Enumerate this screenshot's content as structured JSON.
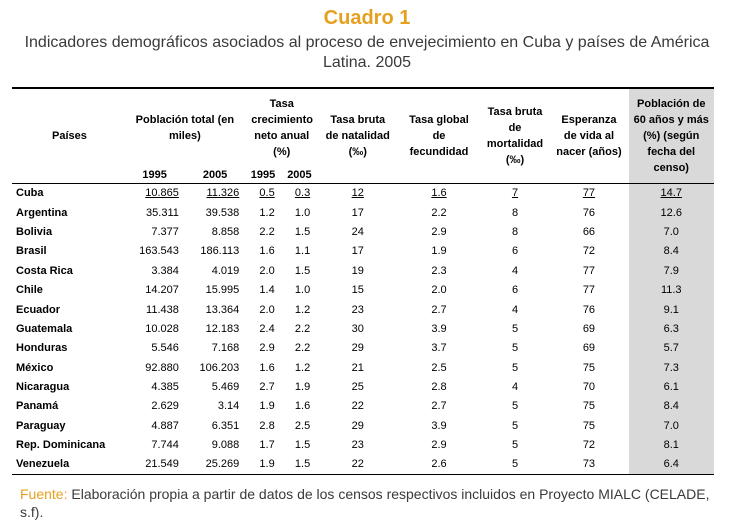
{
  "title": "Cuadro 1",
  "subtitle": "Indicadores demográficos asociados al proceso de envejecimiento en Cuba y países de América Latina. 2005",
  "headers": {
    "paises": "Países",
    "poblacion": "Población total (en miles)",
    "tasa_crec": "Tasa crecimiento neto anual (%)",
    "natalidad": "Tasa bruta de natalidad (‰)",
    "fecundidad": "Tasa global de fecundidad",
    "mortalidad": "Tasa bruta de mortalidad (‰)",
    "esperanza": "Esperanza de vida al nacer (años)",
    "pob60": "Población de 60 años y más (%) (según fecha del censo)",
    "y1995": "1995",
    "y2005": "2005"
  },
  "rows": [
    {
      "country": "Cuba",
      "pop1995": "10.865",
      "pop2005": "11.326",
      "g1995": "0.5",
      "g2005": "0.3",
      "nat": "12",
      "fec": "1.6",
      "mort": "7",
      "esp": "77",
      "p60": "14.7"
    },
    {
      "country": "Argentina",
      "pop1995": "35.311",
      "pop2005": "39.538",
      "g1995": "1.2",
      "g2005": "1.0",
      "nat": "17",
      "fec": "2.2",
      "mort": "8",
      "esp": "76",
      "p60": "12.6"
    },
    {
      "country": "Bolivia",
      "pop1995": "7.377",
      "pop2005": "8.858",
      "g1995": "2.2",
      "g2005": "1.5",
      "nat": "24",
      "fec": "2.9",
      "mort": "8",
      "esp": "66",
      "p60": "7.0"
    },
    {
      "country": "Brasil",
      "pop1995": "163.543",
      "pop2005": "186.113",
      "g1995": "1.6",
      "g2005": "1.1",
      "nat": "17",
      "fec": "1.9",
      "mort": "6",
      "esp": "72",
      "p60": "8.4"
    },
    {
      "country": "Costa Rica",
      "pop1995": "3.384",
      "pop2005": "4.019",
      "g1995": "2.0",
      "g2005": "1.5",
      "nat": "19",
      "fec": "2.3",
      "mort": "4",
      "esp": "77",
      "p60": "7.9"
    },
    {
      "country": "Chile",
      "pop1995": "14.207",
      "pop2005": "15.995",
      "g1995": "1.4",
      "g2005": "1.0",
      "nat": "15",
      "fec": "2.0",
      "mort": "6",
      "esp": "77",
      "p60": "11.3"
    },
    {
      "country": "Ecuador",
      "pop1995": "11.438",
      "pop2005": "13.364",
      "g1995": "2.0",
      "g2005": "1.2",
      "nat": "23",
      "fec": "2.7",
      "mort": "4",
      "esp": "76",
      "p60": "9.1"
    },
    {
      "country": "Guatemala",
      "pop1995": "10.028",
      "pop2005": "12.183",
      "g1995": "2.4",
      "g2005": "2.2",
      "nat": "30",
      "fec": "3.9",
      "mort": "5",
      "esp": "69",
      "p60": "6.3"
    },
    {
      "country": "Honduras",
      "pop1995": "5.546",
      "pop2005": "7.168",
      "g1995": "2.9",
      "g2005": "2.2",
      "nat": "29",
      "fec": "3.7",
      "mort": "5",
      "esp": "69",
      "p60": "5.7"
    },
    {
      "country": "México",
      "pop1995": "92.880",
      "pop2005": "106.203",
      "g1995": "1.6",
      "g2005": "1.2",
      "nat": "21",
      "fec": "2.5",
      "mort": "5",
      "esp": "75",
      "p60": "7.3"
    },
    {
      "country": "Nicaragua",
      "pop1995": "4.385",
      "pop2005": "5.469",
      "g1995": "2.7",
      "g2005": "1.9",
      "nat": "25",
      "fec": "2.8",
      "mort": "4",
      "esp": "70",
      "p60": "6.1"
    },
    {
      "country": "Panamá",
      "pop1995": "2.629",
      "pop2005": "3.14",
      "g1995": "1.9",
      "g2005": "1.6",
      "nat": "22",
      "fec": "2.7",
      "mort": "5",
      "esp": "75",
      "p60": "8.4"
    },
    {
      "country": "Paraguay",
      "pop1995": "4.887",
      "pop2005": "6.351",
      "g1995": "2.8",
      "g2005": "2.5",
      "nat": "29",
      "fec": "3.9",
      "mort": "5",
      "esp": "75",
      "p60": "7.0"
    },
    {
      "country": "Rep. Dominicana",
      "pop1995": "7.744",
      "pop2005": "9.088",
      "g1995": "1.7",
      "g2005": "1.5",
      "nat": "23",
      "fec": "2.9",
      "mort": "5",
      "esp": "72",
      "p60": "8.1"
    },
    {
      "country": "Venezuela",
      "pop1995": "21.549",
      "pop2005": "25.269",
      "g1995": "1.9",
      "g2005": "1.5",
      "nat": "22",
      "fec": "2.6",
      "mort": "5",
      "esp": "73",
      "p60": "6.4"
    }
  ],
  "source_label": "Fuente:",
  "source_text": " Elaboración propia a partir de datos de los censos respectivos incluidos en Proyecto MIALC (CELADE, s.f).",
  "colors": {
    "title": "#e6a020",
    "highlight_column": "#d9d9d9"
  }
}
